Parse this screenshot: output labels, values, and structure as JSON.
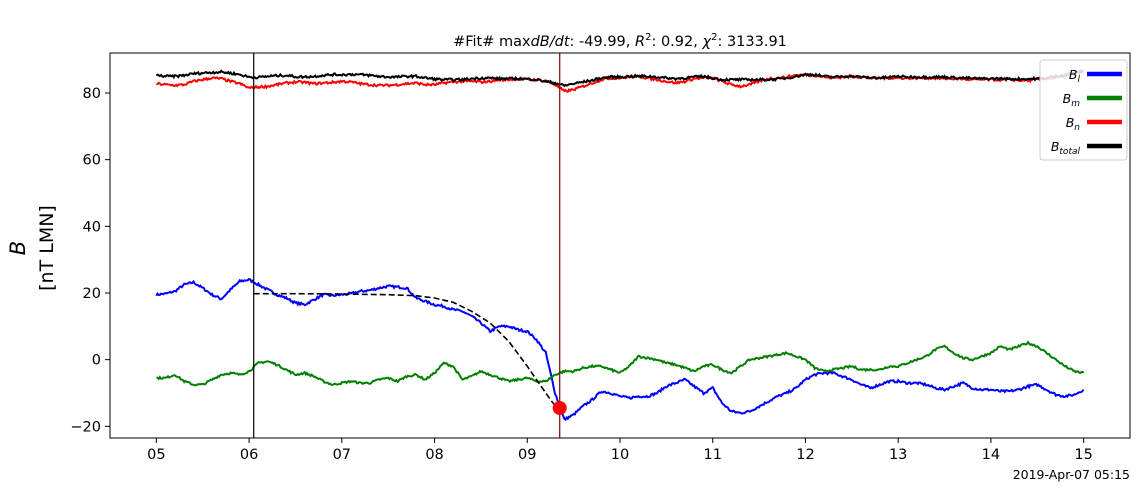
{
  "chart_data": {
    "type": "line",
    "title_parts": {
      "prefix": "#Fit# max",
      "dbdt_label": "dB/dt",
      "dbdt_value": "-49.99",
      "r2_label": "R",
      "r2_exp": "2",
      "r2_value": "0.92",
      "chi_label": "χ",
      "chi_exp": "2",
      "chi_value": "3133.91"
    },
    "ylabel_line1": "B",
    "ylabel_line2": "[nT LMN]",
    "xlabel_note": "2019-Apr-07 05:15",
    "x_ticks": [
      "05",
      "06",
      "07",
      "08",
      "09",
      "10",
      "11",
      "12",
      "13",
      "14",
      "15"
    ],
    "y_ticks": [
      -20,
      0,
      20,
      40,
      60,
      80
    ],
    "xlim": [
      4.5,
      15.5
    ],
    "ylim": [
      -23.5,
      92
    ],
    "legend_position": "upper-right",
    "series": [
      {
        "name": "B_l",
        "legend_base": "B",
        "legend_sub": "l",
        "color": "#0000ff",
        "x": [
          5.0,
          5.1,
          5.2,
          5.3,
          5.4,
          5.5,
          5.6,
          5.7,
          5.8,
          5.9,
          6.0,
          6.1,
          6.2,
          6.3,
          6.4,
          6.5,
          6.6,
          6.7,
          6.8,
          6.9,
          7.0,
          7.1,
          7.2,
          7.3,
          7.4,
          7.5,
          7.6,
          7.7,
          7.8,
          7.9,
          8.0,
          8.1,
          8.2,
          8.3,
          8.4,
          8.5,
          8.6,
          8.7,
          8.8,
          8.9,
          9.0,
          9.1,
          9.2,
          9.3,
          9.4,
          9.5,
          9.6,
          9.7,
          9.8,
          9.9,
          10.0,
          10.1,
          10.2,
          10.3,
          10.4,
          10.5,
          10.6,
          10.7,
          10.8,
          10.9,
          11.0,
          11.1,
          11.2,
          11.3,
          11.4,
          11.5,
          11.6,
          11.7,
          11.8,
          11.9,
          12.0,
          12.1,
          12.2,
          12.3,
          12.4,
          12.5,
          12.6,
          12.7,
          12.8,
          12.9,
          13.0,
          13.1,
          13.2,
          13.3,
          13.4,
          13.5,
          13.6,
          13.7,
          13.8,
          13.9,
          14.0,
          14.1,
          14.2,
          14.3,
          14.4,
          14.5,
          14.6,
          14.7,
          14.8,
          14.9,
          15.0
        ],
        "y": [
          19.5,
          19.8,
          20.5,
          22.5,
          23.2,
          21.5,
          19.5,
          18.2,
          21,
          23.5,
          24,
          22.5,
          21,
          19.5,
          18.5,
          17,
          16.5,
          18,
          19.5,
          19.2,
          19.5,
          19.8,
          20.5,
          20.8,
          21.5,
          22,
          21.8,
          21.5,
          18.5,
          17.5,
          16.5,
          16,
          15,
          14.5,
          13,
          11,
          8.5,
          10,
          10,
          9,
          8.5,
          6,
          2,
          -10,
          -18,
          -16.5,
          -14,
          -12,
          -9.5,
          -10,
          -11,
          -11.5,
          -11,
          -11,
          -10,
          -8,
          -7,
          -6,
          -8,
          -10,
          -8.5,
          -13,
          -15.5,
          -16,
          -15.5,
          -14,
          -12.5,
          -11,
          -10,
          -8.5,
          -6,
          -4.5,
          -4,
          -4,
          -5,
          -6,
          -7.5,
          -8.5,
          -7.5,
          -6.5,
          -6.5,
          -7,
          -7,
          -7.5,
          -8.5,
          -9,
          -8,
          -7,
          -8.5,
          -9,
          -9,
          -9.5,
          -9.5,
          -9,
          -8,
          -7.5,
          -9,
          -10.5,
          -11,
          -10.5,
          -9
        ]
      },
      {
        "name": "B_m",
        "legend_base": "B",
        "legend_sub": "m",
        "color": "#008000",
        "x": [
          5.0,
          5.1,
          5.2,
          5.3,
          5.4,
          5.5,
          5.6,
          5.7,
          5.8,
          5.9,
          6.0,
          6.1,
          6.2,
          6.3,
          6.4,
          6.5,
          6.6,
          6.7,
          6.8,
          6.9,
          7.0,
          7.1,
          7.2,
          7.3,
          7.4,
          7.5,
          7.6,
          7.7,
          7.8,
          7.9,
          8.0,
          8.1,
          8.2,
          8.3,
          8.4,
          8.5,
          8.6,
          8.7,
          8.8,
          8.9,
          9.0,
          9.1,
          9.2,
          9.3,
          9.4,
          9.5,
          9.6,
          9.7,
          9.8,
          9.9,
          10.0,
          10.1,
          10.2,
          10.3,
          10.4,
          10.5,
          10.6,
          10.7,
          10.8,
          10.9,
          11.0,
          11.1,
          11.2,
          11.3,
          11.4,
          11.5,
          11.6,
          11.7,
          11.8,
          11.9,
          12.0,
          12.1,
          12.2,
          12.3,
          12.4,
          12.5,
          12.6,
          12.7,
          12.8,
          12.9,
          13.0,
          13.1,
          13.2,
          13.3,
          13.4,
          13.5,
          13.6,
          13.7,
          13.8,
          13.9,
          14.0,
          14.1,
          14.2,
          14.3,
          14.4,
          14.5,
          14.6,
          14.7,
          14.8,
          14.9,
          15.0
        ],
        "y": [
          -5.5,
          -5.5,
          -4.5,
          -6.5,
          -7.5,
          -7.5,
          -6,
          -4.5,
          -4,
          -4.5,
          -3.5,
          -1,
          -0.5,
          -1.5,
          -3,
          -4.5,
          -4,
          -5,
          -6.5,
          -7.5,
          -7,
          -6.5,
          -7,
          -7,
          -6,
          -5.5,
          -6.5,
          -5,
          -4.5,
          -6,
          -4,
          -1,
          -2,
          -6,
          -5,
          -3.5,
          -4.5,
          -5.5,
          -6.5,
          -6,
          -5.5,
          -6.5,
          -6.5,
          -4.5,
          -3.5,
          -3.5,
          -2.5,
          -2,
          -2,
          -3,
          -4,
          -2,
          1,
          0.5,
          0,
          -1,
          -1.5,
          -2.5,
          -3.5,
          -2,
          -1.5,
          -3,
          -4,
          -2,
          0,
          0.5,
          1,
          1.5,
          2,
          1,
          0,
          -2.5,
          -3.5,
          -3,
          -2.5,
          -2,
          -3,
          -3,
          -3,
          -2,
          -2,
          -1,
          0,
          1,
          3,
          4,
          2,
          0.5,
          0,
          1,
          2,
          4,
          3,
          4,
          5,
          4,
          2,
          0,
          -2,
          -3.5,
          -4
        ]
      },
      {
        "name": "B_n",
        "legend_base": "B",
        "legend_sub": "n",
        "color": "#ff0000",
        "x": [
          5.0,
          5.1,
          5.2,
          5.3,
          5.4,
          5.5,
          5.6,
          5.7,
          5.8,
          5.9,
          6.0,
          6.1,
          6.2,
          6.3,
          6.4,
          6.5,
          6.6,
          6.7,
          6.8,
          6.9,
          7.0,
          7.1,
          7.2,
          7.3,
          7.4,
          7.5,
          7.6,
          7.7,
          7.8,
          7.9,
          8.0,
          8.1,
          8.2,
          8.3,
          8.4,
          8.5,
          8.6,
          8.7,
          8.8,
          8.9,
          9.0,
          9.1,
          9.2,
          9.3,
          9.4,
          9.5,
          9.6,
          9.7,
          9.8,
          9.9,
          10.0,
          10.1,
          10.2,
          10.3,
          10.4,
          10.5,
          10.6,
          10.7,
          10.8,
          10.9,
          11.0,
          11.1,
          11.2,
          11.3,
          11.4,
          11.5,
          11.6,
          11.7,
          11.8,
          11.9,
          12.0,
          12.1,
          12.2,
          12.3,
          12.4,
          12.5,
          12.6,
          12.7,
          12.8,
          12.9,
          13.0,
          13.1,
          13.2,
          13.3,
          13.4,
          13.5,
          13.6,
          13.7,
          13.8,
          13.9,
          14.0,
          14.1,
          14.2,
          14.3,
          14.4,
          14.5,
          14.6,
          14.7,
          14.8,
          14.9,
          15.0
        ],
        "y": [
          82.8,
          82.5,
          82.3,
          82.5,
          83.5,
          84,
          84.5,
          84.3,
          83.5,
          82.8,
          81.5,
          81.8,
          82,
          82.5,
          83,
          83.3,
          83.2,
          82.8,
          83,
          83.2,
          83.5,
          83.3,
          82.8,
          82.5,
          82.3,
          82.3,
          82.5,
          82.8,
          83,
          82.5,
          82.5,
          83,
          83.3,
          83.5,
          83.5,
          83.3,
          83.5,
          84,
          84,
          84.3,
          84,
          84,
          83.5,
          82.5,
          80.5,
          81,
          82,
          83,
          84,
          84.5,
          84.5,
          84.8,
          85,
          84.5,
          84,
          83.5,
          83,
          83.5,
          84.3,
          84.5,
          84.5,
          83.5,
          82.5,
          82,
          82.5,
          83.5,
          84.3,
          84.5,
          84.8,
          85.3,
          85.5,
          85.3,
          84.8,
          84.5,
          84.8,
          85,
          84.8,
          84.5,
          84.5,
          84.5,
          84.5,
          84.5,
          84.5,
          84.5,
          84.5,
          84.3,
          84.3,
          84.2,
          84,
          84,
          84,
          84,
          84,
          83.8,
          83.8,
          84,
          84.3,
          84.5,
          85,
          86,
          86.5
        ]
      },
      {
        "name": "B_total",
        "legend_base": "B",
        "legend_sub": "total",
        "color": "#000000",
        "x": [
          5.0,
          5.1,
          5.2,
          5.3,
          5.4,
          5.5,
          5.6,
          5.7,
          5.8,
          5.9,
          6.0,
          6.1,
          6.2,
          6.3,
          6.4,
          6.5,
          6.6,
          6.7,
          6.8,
          6.9,
          7.0,
          7.1,
          7.2,
          7.3,
          7.4,
          7.5,
          7.6,
          7.7,
          7.8,
          7.9,
          8.0,
          8.1,
          8.2,
          8.3,
          8.4,
          8.5,
          8.6,
          8.7,
          8.8,
          8.9,
          9.0,
          9.1,
          9.2,
          9.3,
          9.4,
          9.5,
          9.6,
          9.7,
          9.8,
          9.9,
          10.0,
          10.1,
          10.2,
          10.3,
          10.4,
          10.5,
          10.6,
          10.7,
          10.8,
          10.9,
          11.0,
          11.1,
          11.2,
          11.3,
          11.4,
          11.5,
          11.6,
          11.7,
          11.8,
          11.9,
          12.0,
          12.1,
          12.2,
          12.3,
          12.4,
          12.5,
          12.6,
          12.7,
          12.8,
          12.9,
          13.0,
          13.1,
          13.2,
          13.3,
          13.4,
          13.5,
          13.6,
          13.7,
          13.8,
          13.9,
          14.0,
          14.1,
          14.2,
          14.3,
          14.4,
          14.5,
          14.6,
          14.7,
          14.8,
          14.9,
          15.0
        ],
        "y": [
          85.3,
          85,
          85,
          85.3,
          85.8,
          86,
          86.2,
          86.3,
          86,
          85.5,
          84.8,
          84.7,
          85,
          85.2,
          85.3,
          84.9,
          84.8,
          85,
          85.3,
          85.5,
          85.5,
          85.6,
          85.5,
          85.3,
          85,
          84.8,
          84.8,
          85,
          85,
          84.5,
          84.2,
          84,
          84,
          84,
          84.3,
          84.5,
          84.5,
          84.3,
          84.3,
          84.3,
          84.2,
          84,
          83.5,
          83,
          82.2,
          82.8,
          83.3,
          83.8,
          84.5,
          84.8,
          84.8,
          85,
          85,
          85,
          84.8,
          84.5,
          84.3,
          84.5,
          84.8,
          85,
          84.5,
          84,
          84,
          84,
          84,
          84,
          84,
          84.2,
          84.5,
          85,
          85.5,
          85.5,
          85,
          84.8,
          85,
          85,
          84.8,
          84.6,
          84.5,
          84.7,
          85,
          84.8,
          84.8,
          84.8,
          84.8,
          84.8,
          84.6,
          84.5,
          84.4,
          84.3,
          84.3,
          84.3,
          84.2,
          84.2,
          84.2,
          84.3,
          84.5,
          85,
          85.5,
          86,
          86.5
        ]
      }
    ],
    "fit_curve": {
      "color": "#000000",
      "style": "dashed",
      "x": [
        6.05,
        6.5,
        7.0,
        7.5,
        7.8,
        8.0,
        8.2,
        8.4,
        8.6,
        8.8,
        9.0,
        9.1,
        9.2,
        9.25,
        9.3,
        9.35
      ],
      "y": [
        19.8,
        19.8,
        19.7,
        19.5,
        19.2,
        18.5,
        17.2,
        14.5,
        11,
        5.5,
        -2,
        -6,
        -10,
        -12,
        -13.8,
        -14.5
      ]
    },
    "vlines": [
      {
        "x": 6.05,
        "color": "#000000"
      },
      {
        "x": 9.35,
        "color": "#800000"
      }
    ],
    "marker": {
      "x": 9.35,
      "y": -14.5,
      "color": "#ff0000"
    }
  }
}
